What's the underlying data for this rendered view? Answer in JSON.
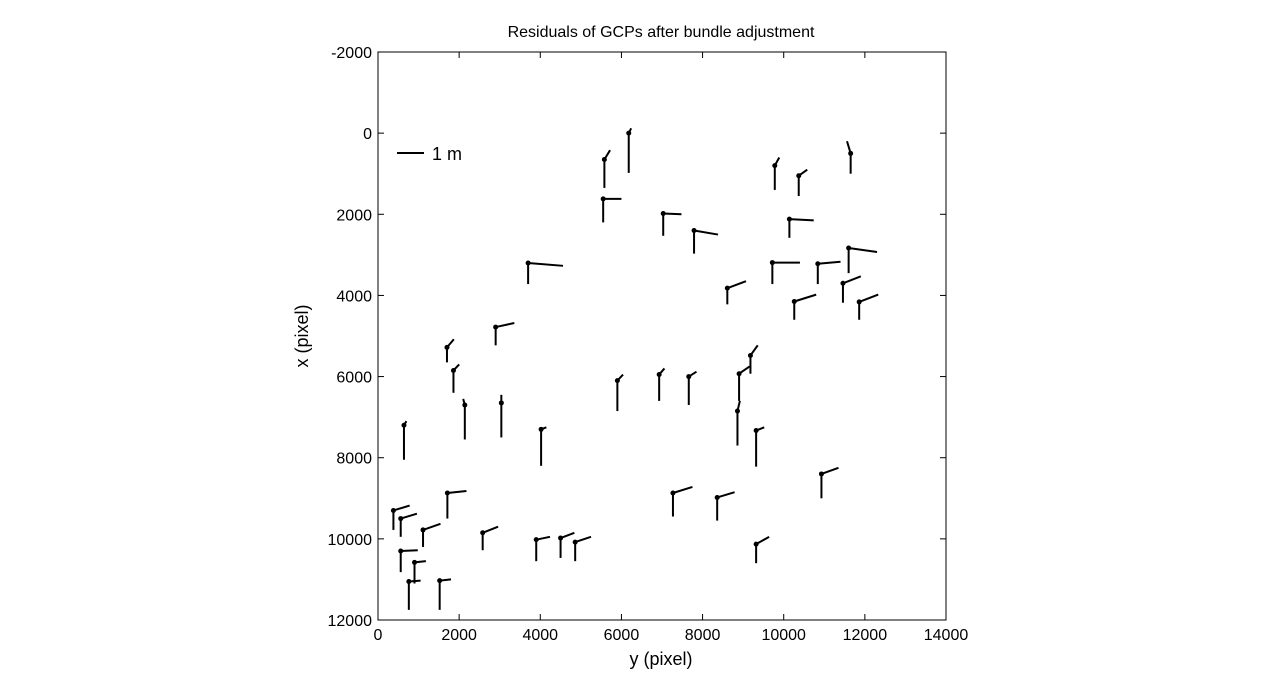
{
  "chart_data": {
    "type": "scatter",
    "title": "Residuals of GCPs after bundle adjustment",
    "xlabel": "y (pixel)",
    "ylabel": "x (pixel)",
    "xlim": [
      0,
      14000
    ],
    "ylim": [
      -2000,
      12000
    ],
    "y_reversed": true,
    "x_ticks": [
      "0",
      "2000",
      "4000",
      "6000",
      "8000",
      "10000",
      "12000",
      "14000"
    ],
    "y_ticks": [
      "-2000",
      "0",
      "2000",
      "4000",
      "6000",
      "8000",
      "10000",
      "12000"
    ],
    "grid": false,
    "legend": {
      "label": "1 m",
      "position": "top-left"
    },
    "residual_units": "y/x tip offsets in axis pixels representing residual vectors (scale bar = 1 m)",
    "points": [
      {
        "y": 6180,
        "x": 0,
        "vy": 0,
        "vx": 980,
        "hy": 6240,
        "hx": -120
      },
      {
        "y": 5580,
        "x": 650,
        "vy": 0,
        "vx": 1350,
        "hy": 5720,
        "hx": 420
      },
      {
        "y": 11650,
        "x": 500,
        "vy": 0,
        "vx": 1000,
        "hy": 11560,
        "hx": 200
      },
      {
        "y": 9780,
        "x": 800,
        "vy": 0,
        "vx": 1400,
        "hy": 9890,
        "hx": 600
      },
      {
        "y": 10370,
        "x": 1050,
        "vy": 0,
        "vx": 1550,
        "hy": 10580,
        "hx": 900
      },
      {
        "y": 5550,
        "x": 1620,
        "vy": 0,
        "vx": 2200,
        "hy": 6000,
        "hx": 1620
      },
      {
        "y": 7030,
        "x": 1980,
        "vy": 0,
        "vx": 2530,
        "hy": 7480,
        "hx": 2000
      },
      {
        "y": 10140,
        "x": 2120,
        "vy": 0,
        "vx": 2580,
        "hy": 10740,
        "hx": 2150
      },
      {
        "y": 7790,
        "x": 2400,
        "vy": 0,
        "vx": 2970,
        "hy": 8380,
        "hx": 2500
      },
      {
        "y": 3700,
        "x": 3200,
        "vy": 0,
        "vx": 3720,
        "hy": 4560,
        "hx": 3270
      },
      {
        "y": 9720,
        "x": 3190,
        "vy": 0,
        "vx": 3720,
        "hy": 10400,
        "hx": 3190
      },
      {
        "y": 10840,
        "x": 3220,
        "vy": 0,
        "vx": 3720,
        "hy": 11400,
        "hx": 3170
      },
      {
        "y": 11600,
        "x": 2830,
        "vy": 0,
        "vx": 3450,
        "hy": 12300,
        "hx": 2930
      },
      {
        "y": 8610,
        "x": 3820,
        "vy": 0,
        "vx": 4220,
        "hy": 9070,
        "hx": 3650
      },
      {
        "y": 11460,
        "x": 3700,
        "vy": 0,
        "vx": 4180,
        "hy": 11900,
        "hx": 3530
      },
      {
        "y": 10260,
        "x": 4150,
        "vy": 0,
        "vx": 4600,
        "hy": 10800,
        "hx": 3980
      },
      {
        "y": 11860,
        "x": 4160,
        "vy": 0,
        "vx": 4600,
        "hy": 12330,
        "hx": 3980
      },
      {
        "y": 2900,
        "x": 4780,
        "vy": 0,
        "vx": 5230,
        "hy": 3360,
        "hx": 4680
      },
      {
        "y": 1700,
        "x": 5280,
        "vy": 0,
        "vx": 5650,
        "hy": 1870,
        "hx": 5080
      },
      {
        "y": 9180,
        "x": 5480,
        "vy": 0,
        "vx": 5930,
        "hy": 9360,
        "hx": 5230
      },
      {
        "y": 1860,
        "x": 5850,
        "vy": 0,
        "vx": 6400,
        "hy": 2000,
        "hx": 5700
      },
      {
        "y": 6930,
        "x": 5950,
        "vy": 0,
        "vx": 6600,
        "hy": 7060,
        "hx": 5800
      },
      {
        "y": 7660,
        "x": 6000,
        "vy": 0,
        "vx": 6700,
        "hy": 7850,
        "hx": 5880
      },
      {
        "y": 8900,
        "x": 5930,
        "vy": 0,
        "vx": 6600,
        "hy": 9160,
        "hx": 5750
      },
      {
        "y": 5900,
        "x": 6100,
        "vy": 0,
        "vx": 6850,
        "hy": 6040,
        "hx": 5950
      },
      {
        "y": 2140,
        "x": 6700,
        "vy": 0,
        "vx": 7550,
        "hy": 2100,
        "hx": 6550
      },
      {
        "y": 3040,
        "x": 6650,
        "vy": 0,
        "vx": 7500,
        "hy": 3040,
        "hx": 6450
      },
      {
        "y": 8860,
        "x": 6850,
        "vy": 0,
        "vx": 7700,
        "hy": 8920,
        "hx": 6600
      },
      {
        "y": 640,
        "x": 7200,
        "vy": 0,
        "vx": 8050,
        "hy": 700,
        "hx": 7100
      },
      {
        "y": 4020,
        "x": 7300,
        "vy": 0,
        "vx": 8200,
        "hy": 4150,
        "hx": 7250
      },
      {
        "y": 9320,
        "x": 7330,
        "vy": 0,
        "vx": 8220,
        "hy": 9520,
        "hx": 7250
      },
      {
        "y": 10930,
        "x": 8400,
        "vy": 0,
        "vx": 9000,
        "hy": 11350,
        "hx": 8250
      },
      {
        "y": 1710,
        "x": 8870,
        "vy": 0,
        "vx": 9500,
        "hy": 2180,
        "hx": 8820
      },
      {
        "y": 7270,
        "x": 8870,
        "vy": 0,
        "vx": 9450,
        "hy": 7750,
        "hx": 8720
      },
      {
        "y": 8360,
        "x": 8980,
        "vy": 0,
        "vx": 9550,
        "hy": 8790,
        "hx": 8850
      },
      {
        "y": 380,
        "x": 9300,
        "vy": 0,
        "vx": 9780,
        "hy": 780,
        "hx": 9180
      },
      {
        "y": 560,
        "x": 9500,
        "vy": 0,
        "vx": 9950,
        "hy": 960,
        "hx": 9380
      },
      {
        "y": 1110,
        "x": 9780,
        "vy": 0,
        "vx": 10200,
        "hy": 1540,
        "hx": 9630
      },
      {
        "y": 2580,
        "x": 9850,
        "vy": 0,
        "vx": 10280,
        "hy": 2960,
        "hx": 9700
      },
      {
        "y": 3900,
        "x": 10020,
        "vy": 0,
        "vx": 10550,
        "hy": 4240,
        "hx": 9950
      },
      {
        "y": 4500,
        "x": 9980,
        "vy": 0,
        "vx": 10470,
        "hy": 4840,
        "hx": 9850
      },
      {
        "y": 4860,
        "x": 10080,
        "vy": 0,
        "vx": 10550,
        "hy": 5250,
        "hx": 9950
      },
      {
        "y": 9320,
        "x": 10130,
        "vy": 0,
        "vx": 10600,
        "hy": 9640,
        "hx": 9950
      },
      {
        "y": 560,
        "x": 10300,
        "vy": 0,
        "vx": 10820,
        "hy": 980,
        "hx": 10280
      },
      {
        "y": 900,
        "x": 10580,
        "vy": 0,
        "vx": 11100,
        "hy": 1180,
        "hx": 10550
      },
      {
        "y": 760,
        "x": 11050,
        "vy": 0,
        "vx": 11750,
        "hy": 1050,
        "hx": 11030
      },
      {
        "y": 1520,
        "x": 11030,
        "vy": 0,
        "vx": 11750,
        "hy": 1800,
        "hx": 11000
      }
    ]
  }
}
